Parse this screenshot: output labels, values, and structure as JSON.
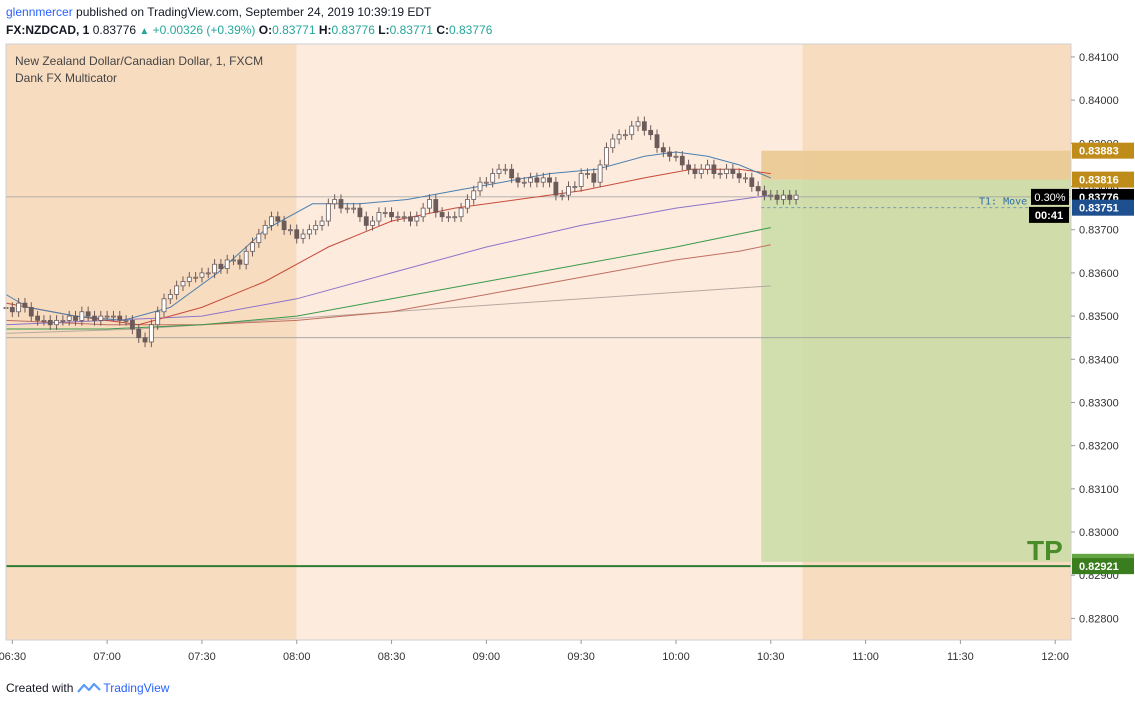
{
  "header": {
    "author": "glennmercer",
    "published_text": "published on TradingView.com, September 24, 2019 10:39:19 EDT",
    "symbol": "FX:NZDCAD, 1",
    "last": "0.83776",
    "change": "+0.00326 (+0.39%)",
    "open_label": "O:",
    "open": "0.83771",
    "high_label": "H:",
    "high": "0.83776",
    "low_label": "L:",
    "low": "0.83771",
    "close_label": "C:",
    "close": "0.83776"
  },
  "legend": {
    "title": "New Zealand Dollar/Canadian Dollar, 1, FXCM",
    "indicator": "Dank FX Multicator"
  },
  "footer": {
    "created_with": "Created with",
    "brand": "TradingView"
  },
  "colors": {
    "session_dark": "#f8dcc0",
    "session_light": "#fdebde",
    "profit_zone": "#c9dca6",
    "stop_zone": "#e9c88e",
    "tp_line": "#2e7d32",
    "price_tag_current": "#000000",
    "price_tag_blue": "#1e4f8f",
    "stop_tag": "#bf8c1a",
    "tp_tag": "#66a543",
    "tp_tag_dark": "#3a7d1e",
    "ema_blue": "#4a80b0",
    "ema_red": "#c84a3a",
    "ema_purple": "#8c75c8",
    "ema_green": "#3a9a4a",
    "ema_gray": "#b8a8a0"
  },
  "chart_data": {
    "type": "candlestick",
    "y_range": [
      0.8275,
      0.8413
    ],
    "y_ticks": [
      "0.84100",
      "0.84000",
      "0.83900",
      "0.83800",
      "0.83700",
      "0.83600",
      "0.83500",
      "0.83400",
      "0.83300",
      "0.83200",
      "0.83100",
      "0.83000",
      "0.82900",
      "0.82800"
    ],
    "x_ticks": [
      "06:30",
      "07:00",
      "07:30",
      "08:00",
      "08:30",
      "09:00",
      "09:30",
      "10:00",
      "10:30",
      "11:00",
      "11:30",
      "12:00"
    ],
    "x_range_minutes": [
      388,
      725
    ],
    "sessions": [
      {
        "start": 388,
        "end": 480,
        "shade": "dark"
      },
      {
        "start": 480,
        "end": 640,
        "shade": "light"
      },
      {
        "start": 640,
        "end": 725,
        "shade": "dark"
      }
    ],
    "key_price_tags": [
      {
        "price": 0.83883,
        "label": "0.83883",
        "role": "stop"
      },
      {
        "price": 0.83816,
        "label": "0.83816",
        "role": "entry"
      },
      {
        "price": 0.83776,
        "label": "0.83776",
        "role": "current"
      },
      {
        "price": 0.83751,
        "label": "0.83751",
        "role": "blue"
      },
      {
        "price": 0.82931,
        "label": "0.82931",
        "role": "tp"
      },
      {
        "price": 0.82921,
        "label": "0.82921",
        "role": "tp-line"
      }
    ],
    "countdown": "00:41",
    "percent_tag": "0.30%",
    "position": {
      "start_min": 627,
      "end_min": 725,
      "entry": 0.83816,
      "stop": 0.83883,
      "target": 0.82931,
      "label_tp": "TP",
      "label_t1": "T1: Move"
    },
    "horizontal_lines": [
      {
        "price": 0.83776,
        "style": "solid-gray"
      },
      {
        "price": 0.8345,
        "style": "solid-gray"
      },
      {
        "price": 0.82921,
        "style": "solid-green"
      }
    ],
    "candles_t": [
      388,
      390,
      392,
      394,
      396,
      398,
      400,
      402,
      404,
      406,
      408,
      410,
      412,
      414,
      416,
      418,
      420,
      422,
      424,
      426,
      428,
      430,
      432,
      434,
      436,
      438,
      440,
      442,
      444,
      446,
      448,
      450,
      452,
      454,
      456,
      458,
      460,
      462,
      464,
      466,
      468,
      470,
      472,
      474,
      476,
      478,
      480,
      482,
      484,
      486,
      488,
      490,
      492,
      494,
      496,
      498,
      500,
      502,
      504,
      506,
      508,
      510,
      512,
      514,
      516,
      518,
      520,
      522,
      524,
      526,
      528,
      530,
      532,
      534,
      536,
      538,
      540,
      542,
      544,
      546,
      548,
      550,
      552,
      554,
      556,
      558,
      560,
      562,
      564,
      566,
      568,
      570,
      572,
      574,
      576,
      578,
      580,
      582,
      584,
      586,
      588,
      590,
      592,
      594,
      596,
      598,
      600,
      602,
      604,
      606,
      608,
      610,
      612,
      614,
      616,
      618,
      620,
      622,
      624,
      626,
      628,
      630,
      632,
      634,
      636,
      638
    ],
    "candles_close": [
      0.8352,
      0.8351,
      0.8353,
      0.8352,
      0.835,
      0.8349,
      0.8349,
      0.8348,
      0.8349,
      0.8349,
      0.835,
      0.8349,
      0.8351,
      0.835,
      0.8349,
      0.835,
      0.835,
      0.835,
      0.8349,
      0.8349,
      0.8347,
      0.8345,
      0.8344,
      0.8348,
      0.8351,
      0.8354,
      0.8355,
      0.8357,
      0.8358,
      0.8359,
      0.8359,
      0.836,
      0.836,
      0.8362,
      0.8361,
      0.8363,
      0.8363,
      0.8362,
      0.8365,
      0.8367,
      0.8369,
      0.8371,
      0.8373,
      0.8372,
      0.837,
      0.837,
      0.8368,
      0.8369,
      0.837,
      0.8371,
      0.8372,
      0.8376,
      0.8377,
      0.8375,
      0.8375,
      0.8375,
      0.8373,
      0.8371,
      0.8372,
      0.8374,
      0.8374,
      0.8373,
      0.8373,
      0.8373,
      0.8372,
      0.8373,
      0.8375,
      0.8377,
      0.8374,
      0.8373,
      0.8373,
      0.8373,
      0.8375,
      0.8377,
      0.8379,
      0.8381,
      0.8381,
      0.8383,
      0.8384,
      0.8384,
      0.8382,
      0.8381,
      0.8381,
      0.8382,
      0.8381,
      0.8382,
      0.8381,
      0.8378,
      0.8378,
      0.838,
      0.838,
      0.8383,
      0.8383,
      0.8381,
      0.8385,
      0.8389,
      0.8391,
      0.8392,
      0.8392,
      0.8394,
      0.8395,
      0.8393,
      0.8392,
      0.8389,
      0.8388,
      0.8387,
      0.8387,
      0.8385,
      0.8384,
      0.8383,
      0.8384,
      0.8385,
      0.8383,
      0.8383,
      0.8384,
      0.8383,
      0.8382,
      0.8382,
      0.838,
      0.8379,
      0.8378,
      0.8378,
      0.8377,
      0.8378,
      0.8377,
      0.8378
    ],
    "ema_blue": [
      [
        388,
        0.8355
      ],
      [
        395,
        0.8352
      ],
      [
        410,
        0.835
      ],
      [
        425,
        0.8349
      ],
      [
        440,
        0.8352
      ],
      [
        455,
        0.836
      ],
      [
        470,
        0.837
      ],
      [
        485,
        0.8376
      ],
      [
        500,
        0.8376
      ],
      [
        515,
        0.8377
      ],
      [
        530,
        0.8379
      ],
      [
        545,
        0.8381
      ],
      [
        560,
        0.8383
      ],
      [
        575,
        0.8384
      ],
      [
        590,
        0.8387
      ],
      [
        600,
        0.8388
      ],
      [
        610,
        0.8387
      ],
      [
        620,
        0.8385
      ],
      [
        630,
        0.8382
      ]
    ],
    "ema_red": [
      [
        388,
        0.8353
      ],
      [
        410,
        0.835
      ],
      [
        430,
        0.8348
      ],
      [
        450,
        0.8352
      ],
      [
        470,
        0.8358
      ],
      [
        490,
        0.8366
      ],
      [
        510,
        0.8372
      ],
      [
        530,
        0.8375
      ],
      [
        550,
        0.8377
      ],
      [
        570,
        0.8379
      ],
      [
        590,
        0.8382
      ],
      [
        605,
        0.8384
      ],
      [
        620,
        0.8384
      ],
      [
        630,
        0.8383
      ]
    ],
    "ema_purple": [
      [
        388,
        0.8348
      ],
      [
        420,
        0.8349
      ],
      [
        450,
        0.835
      ],
      [
        480,
        0.8354
      ],
      [
        510,
        0.836
      ],
      [
        540,
        0.8366
      ],
      [
        570,
        0.8371
      ],
      [
        600,
        0.8375
      ],
      [
        620,
        0.8377
      ],
      [
        630,
        0.8378
      ]
    ],
    "ema_green": [
      [
        388,
        0.8347
      ],
      [
        420,
        0.8347
      ],
      [
        450,
        0.8348
      ],
      [
        480,
        0.835
      ],
      [
        510,
        0.8354
      ],
      [
        540,
        0.8358
      ],
      [
        570,
        0.8362
      ],
      [
        600,
        0.8366
      ],
      [
        620,
        0.8369
      ],
      [
        630,
        0.83705
      ]
    ],
    "ema_brown": [
      [
        388,
        0.8349
      ],
      [
        420,
        0.8348
      ],
      [
        450,
        0.8348
      ],
      [
        480,
        0.8349
      ],
      [
        510,
        0.8351
      ],
      [
        540,
        0.8355
      ],
      [
        570,
        0.8359
      ],
      [
        600,
        0.8363
      ],
      [
        620,
        0.8365
      ],
      [
        630,
        0.83665
      ]
    ],
    "ema_gray": [
      [
        388,
        0.8346
      ],
      [
        430,
        0.8347
      ],
      [
        470,
        0.8349
      ],
      [
        510,
        0.8351
      ],
      [
        550,
        0.8353
      ],
      [
        590,
        0.8355
      ],
      [
        630,
        0.8357
      ]
    ]
  }
}
